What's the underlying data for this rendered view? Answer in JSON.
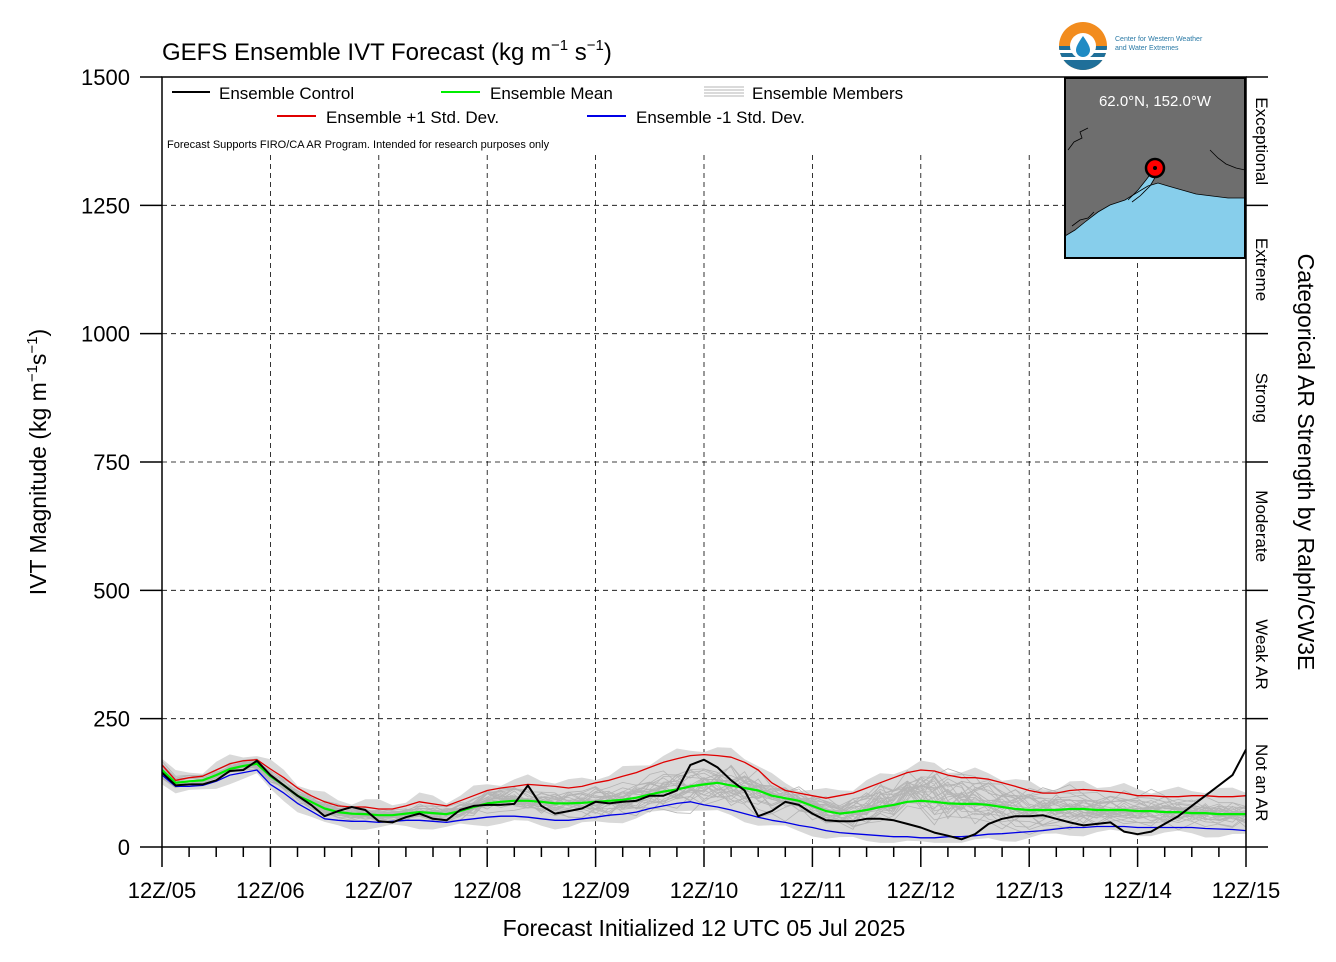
{
  "chart_data": {
    "type": "line",
    "title_main": "GEFS Ensemble IVT Forecast (kg m",
    "title_sup1": "−1",
    "title_mid": " s",
    "title_sup2": "−1",
    "title_end": ")",
    "ylabel_main": "IVT Magnitude (kg m",
    "ylabel_sup1": "−1",
    "ylabel_mid": "s",
    "ylabel_sup2": "−1",
    "ylabel_end": ")",
    "xlabel": "Forecast Initialized 12 UTC 05 Jul 2025",
    "right_label": "Categorical AR Strength by Ralph/CW3E",
    "disclaimer": "Forecast Supports FIRO/CA AR Program. Intended for research purposes only",
    "ylim": [
      0,
      1500
    ],
    "xlim": [
      0,
      240
    ],
    "yticks": [
      {
        "v": 0,
        "label": "0"
      },
      {
        "v": 250,
        "label": "250"
      },
      {
        "v": 500,
        "label": "500"
      },
      {
        "v": 750,
        "label": "750"
      },
      {
        "v": 1000,
        "label": "1000"
      },
      {
        "v": 1250,
        "label": "1250"
      },
      {
        "v": 1500,
        "label": "1500"
      }
    ],
    "xticks": [
      {
        "v": 0,
        "label": "12Z/05"
      },
      {
        "v": 24,
        "label": "12Z/06"
      },
      {
        "v": 48,
        "label": "12Z/07"
      },
      {
        "v": 72,
        "label": "12Z/08"
      },
      {
        "v": 96,
        "label": "12Z/09"
      },
      {
        "v": 120,
        "label": "12Z/10"
      },
      {
        "v": 144,
        "label": "12Z/11"
      },
      {
        "v": 168,
        "label": "12Z/12"
      },
      {
        "v": 192,
        "label": "12Z/13"
      },
      {
        "v": 216,
        "label": "12Z/14"
      },
      {
        "v": 240,
        "label": "12Z/15"
      }
    ],
    "categories": [
      {
        "label": "Not an AR",
        "from": 0,
        "to": 250
      },
      {
        "label": "Weak AR",
        "from": 250,
        "to": 500
      },
      {
        "label": "Moderate",
        "from": 500,
        "to": 750
      },
      {
        "label": "Strong",
        "from": 750,
        "to": 1000
      },
      {
        "label": "Extreme",
        "from": 1000,
        "to": 1250
      },
      {
        "label": "Exceptional",
        "from": 1250,
        "to": 1500
      }
    ],
    "legend": {
      "control": "Ensemble Control",
      "mean": "Ensemble Mean",
      "members": "Ensemble Members",
      "plus": "Ensemble +1 Std. Dev.",
      "minus": "Ensemble -1 Std. Dev."
    },
    "colors": {
      "control": "#000000",
      "mean": "#00ee00",
      "members": "#b4b4b4",
      "plus": "#e00000",
      "minus": "#0000e6",
      "band": "#d9d9d9"
    },
    "x": [
      0,
      3,
      6,
      9,
      12,
      15,
      18,
      21,
      24,
      27,
      30,
      33,
      36,
      39,
      42,
      45,
      48,
      51,
      54,
      57,
      60,
      63,
      66,
      69,
      72,
      75,
      78,
      81,
      84,
      87,
      90,
      93,
      96,
      99,
      102,
      105,
      108,
      111,
      114,
      117,
      120,
      123,
      126,
      129,
      132,
      135,
      138,
      141,
      144,
      147,
      150,
      153,
      156,
      159,
      162,
      165,
      168,
      171,
      174,
      177,
      180,
      183,
      186,
      189,
      192,
      195,
      198,
      201,
      204,
      207,
      210,
      213,
      216,
      219,
      222,
      225,
      228,
      231,
      234,
      237,
      240
    ],
    "series": [
      {
        "key": "control",
        "name": "Ensemble Control",
        "values": [
          145,
          120,
          122,
          122,
          130,
          148,
          150,
          168,
          140,
          120,
          100,
          82,
          60,
          70,
          78,
          72,
          50,
          48,
          58,
          65,
          55,
          52,
          72,
          80,
          82,
          82,
          84,
          120,
          80,
          65,
          70,
          75,
          88,
          85,
          88,
          90,
          100,
          100,
          110,
          160,
          170,
          155,
          130,
          110,
          60,
          70,
          88,
          82,
          65,
          52,
          50,
          50,
          55,
          55,
          52,
          45,
          38,
          28,
          22,
          15,
          25,
          45,
          55,
          60,
          60,
          62,
          55,
          48,
          42,
          45,
          48,
          30,
          25,
          30,
          45,
          60,
          80,
          100,
          120,
          140,
          190
        ]
      },
      {
        "key": "mean",
        "name": "Ensemble Mean",
        "values": [
          150,
          125,
          128,
          130,
          140,
          152,
          158,
          162,
          138,
          120,
          100,
          88,
          75,
          68,
          65,
          64,
          62,
          62,
          65,
          68,
          66,
          64,
          70,
          78,
          85,
          88,
          90,
          90,
          88,
          85,
          85,
          86,
          88,
          90,
          92,
          96,
          102,
          108,
          112,
          118,
          122,
          125,
          120,
          115,
          110,
          100,
          95,
          90,
          80,
          70,
          65,
          68,
          72,
          78,
          82,
          88,
          90,
          88,
          85,
          84,
          84,
          82,
          78,
          74,
          72,
          72,
          72,
          74,
          74,
          72,
          72,
          72,
          70,
          70,
          68,
          68,
          66,
          66,
          64,
          64,
          64
        ]
      },
      {
        "key": "plus",
        "name": "Ensemble +1 Std. Dev.",
        "values": [
          160,
          130,
          135,
          138,
          150,
          162,
          168,
          170,
          152,
          135,
          115,
          100,
          88,
          80,
          78,
          78,
          74,
          74,
          80,
          88,
          84,
          80,
          90,
          100,
          110,
          115,
          118,
          122,
          120,
          118,
          115,
          118,
          125,
          130,
          138,
          145,
          155,
          165,
          172,
          178,
          180,
          178,
          175,
          165,
          150,
          125,
          110,
          105,
          100,
          95,
          100,
          105,
          115,
          125,
          135,
          145,
          150,
          148,
          140,
          135,
          135,
          132,
          125,
          118,
          110,
          105,
          105,
          110,
          112,
          110,
          108,
          105,
          100,
          100,
          98,
          98,
          100,
          100,
          98,
          98,
          100
        ]
      },
      {
        "key": "minus",
        "name": "Ensemble -1 Std. Dev.",
        "values": [
          140,
          118,
          118,
          120,
          128,
          140,
          145,
          150,
          122,
          105,
          85,
          70,
          55,
          52,
          50,
          50,
          48,
          50,
          52,
          52,
          50,
          48,
          52,
          55,
          58,
          60,
          60,
          58,
          55,
          52,
          52,
          55,
          58,
          62,
          64,
          68,
          75,
          80,
          85,
          88,
          82,
          78,
          72,
          65,
          58,
          52,
          48,
          42,
          38,
          32,
          28,
          26,
          24,
          22,
          20,
          20,
          18,
          18,
          20,
          20,
          22,
          25,
          26,
          28,
          30,
          32,
          35,
          38,
          38,
          40,
          40,
          40,
          38,
          38,
          38,
          38,
          38,
          36,
          35,
          34,
          32
        ]
      }
    ]
  }
}
